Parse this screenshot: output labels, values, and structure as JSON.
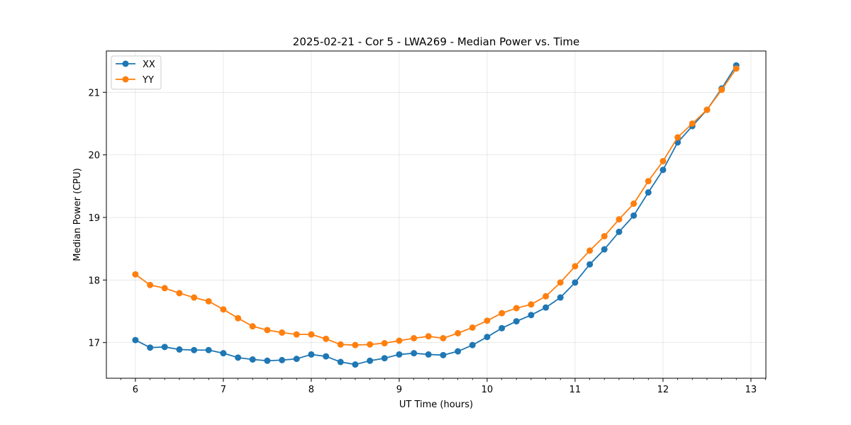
{
  "chart_data": {
    "type": "line",
    "title": "2025-02-21 - Cor 5 - LWA269 - Median Power vs. Time",
    "xlabel": "UT Time (hours)",
    "ylabel": "Median Power (CPU)",
    "xlim": [
      5.67,
      13.17
    ],
    "ylim": [
      16.43,
      21.66
    ],
    "xticks": [
      6,
      7,
      8,
      9,
      10,
      11,
      12,
      13
    ],
    "yticks": [
      17,
      18,
      19,
      20,
      21
    ],
    "grid": true,
    "legend_position": "top-left",
    "x": [
      6.0,
      6.167,
      6.333,
      6.5,
      6.667,
      6.833,
      7.0,
      7.167,
      7.333,
      7.5,
      7.667,
      7.833,
      8.0,
      8.167,
      8.333,
      8.5,
      8.667,
      8.833,
      9.0,
      9.167,
      9.333,
      9.5,
      9.667,
      9.833,
      10.0,
      10.167,
      10.333,
      10.5,
      10.667,
      10.833,
      11.0,
      11.167,
      11.333,
      11.5,
      11.667,
      11.833,
      12.0,
      12.167,
      12.333,
      12.5,
      12.667,
      12.833
    ],
    "series": [
      {
        "name": "XX",
        "color": "#1f77b4",
        "values": [
          17.04,
          16.92,
          16.93,
          16.89,
          16.88,
          16.88,
          16.83,
          16.76,
          16.73,
          16.71,
          16.72,
          16.74,
          16.81,
          16.78,
          16.69,
          16.65,
          16.71,
          16.75,
          16.81,
          16.83,
          16.81,
          16.8,
          16.86,
          16.96,
          17.09,
          17.23,
          17.34,
          17.44,
          17.56,
          17.72,
          17.96,
          18.25,
          18.49,
          18.77,
          19.03,
          19.4,
          19.76,
          20.2,
          20.46,
          20.72,
          21.06,
          21.43
        ]
      },
      {
        "name": "YY",
        "color": "#ff7f0e",
        "values": [
          18.09,
          17.92,
          17.87,
          17.79,
          17.72,
          17.66,
          17.53,
          17.39,
          17.26,
          17.2,
          17.16,
          17.13,
          17.13,
          17.06,
          16.97,
          16.96,
          16.97,
          16.99,
          17.03,
          17.07,
          17.1,
          17.07,
          17.15,
          17.24,
          17.35,
          17.47,
          17.55,
          17.61,
          17.74,
          17.96,
          18.22,
          18.47,
          18.7,
          18.97,
          19.22,
          19.58,
          19.9,
          20.28,
          20.5,
          20.72,
          21.04,
          21.38
        ]
      }
    ]
  }
}
